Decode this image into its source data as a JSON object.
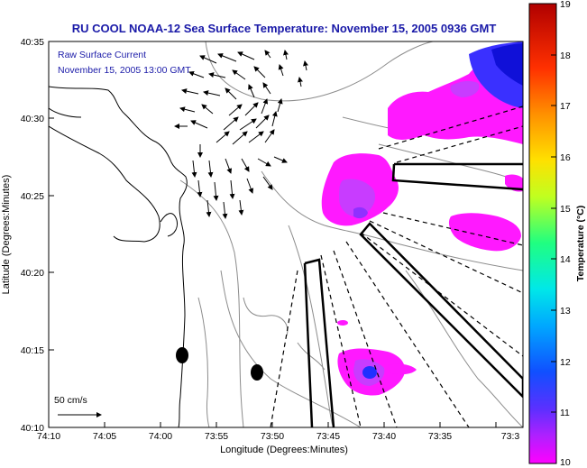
{
  "title": "RU COOL  NOAA-12  Sea Surface Temperature:  November 15, 2005 0936 GMT",
  "overlay": {
    "line1": "Raw Surface Current",
    "line2": "November 15, 2005 13:00 GMT"
  },
  "axes": {
    "xlabel": "Longitude (Degrees:Minutes)",
    "ylabel": "Latitude (Degrees:Minutes)",
    "xticks": [
      "74:10",
      "74:05",
      "74:00",
      "73:55",
      "73:50",
      "73:45",
      "73:40",
      "73:35",
      "73:3"
    ],
    "yticks": [
      "40:35",
      "40:30",
      "40:25",
      "40:20",
      "40:15",
      "40:10"
    ]
  },
  "scale_bar": {
    "label": "50 cm/s"
  },
  "colorbar": {
    "label": "Temperature (°C)",
    "ticks": [
      "19",
      "18",
      "17",
      "16",
      "15",
      "14",
      "13",
      "12",
      "11",
      "10"
    ],
    "min": 10,
    "max": 19
  },
  "colors": {
    "title": "#1a1aa8",
    "sst_warm": "#ff19ff",
    "sst_mid": "#c83cff",
    "sst_cold": "#2030ff"
  }
}
